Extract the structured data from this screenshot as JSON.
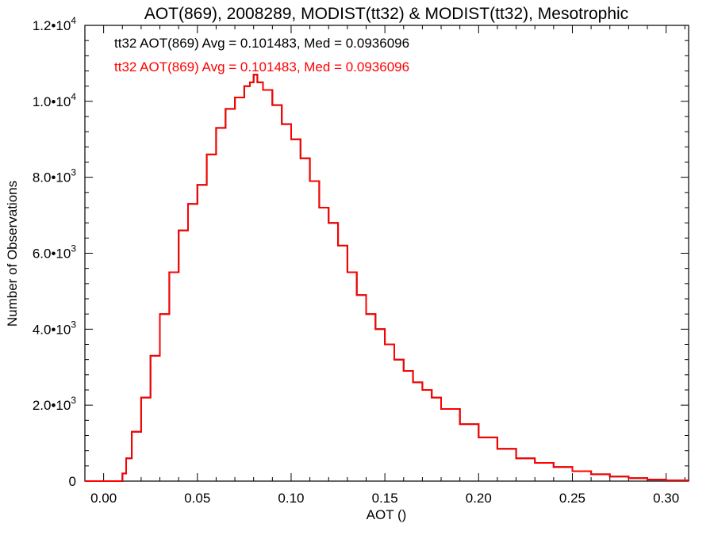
{
  "chart_data": {
    "type": "line",
    "title": "AOT(869), 2008289, MODIST(tt32) & MODIST(tt32), Mesotrophic",
    "xlabel": "AOT ()",
    "ylabel": "Number of Observations",
    "xlim": [
      -0.01,
      0.312
    ],
    "ylim": [
      0,
      12000
    ],
    "x_ticks": [
      {
        "value": 0.0,
        "label": "0.00"
      },
      {
        "value": 0.05,
        "label": "0.05"
      },
      {
        "value": 0.1,
        "label": "0.10"
      },
      {
        "value": 0.15,
        "label": "0.15"
      },
      {
        "value": 0.2,
        "label": "0.20"
      },
      {
        "value": 0.25,
        "label": "0.25"
      },
      {
        "value": 0.3,
        "label": "0.30"
      }
    ],
    "y_ticks": [
      {
        "value": 0,
        "base": "0",
        "exp": ""
      },
      {
        "value": 2000,
        "base": "2.0•10",
        "exp": "3"
      },
      {
        "value": 4000,
        "base": "4.0•10",
        "exp": "3"
      },
      {
        "value": 6000,
        "base": "6.0•10",
        "exp": "3"
      },
      {
        "value": 8000,
        "base": "8.0•10",
        "exp": "3"
      },
      {
        "value": 10000,
        "base": "1.0•10",
        "exp": "4"
      },
      {
        "value": 12000,
        "base": "1.2•10",
        "exp": "4"
      }
    ],
    "annotations": [
      {
        "text": "tt32 AOT(869) Avg = 0.101483, Med = 0.0936096",
        "color": "#000000"
      },
      {
        "text": "tt32 AOT(869) Avg = 0.101483, Med = 0.0936096",
        "color": "#ff0000"
      }
    ],
    "series": [
      {
        "color": "#000000",
        "x": [
          -0.01,
          0.005,
          0.01,
          0.012,
          0.015,
          0.02,
          0.025,
          0.03,
          0.035,
          0.04,
          0.045,
          0.05,
          0.055,
          0.06,
          0.065,
          0.07,
          0.075,
          0.078,
          0.08,
          0.082,
          0.085,
          0.09,
          0.095,
          0.1,
          0.105,
          0.11,
          0.115,
          0.12,
          0.125,
          0.13,
          0.135,
          0.14,
          0.145,
          0.15,
          0.155,
          0.16,
          0.165,
          0.17,
          0.175,
          0.18,
          0.19,
          0.2,
          0.21,
          0.22,
          0.23,
          0.24,
          0.25,
          0.26,
          0.27,
          0.28,
          0.29,
          0.3,
          0.312
        ],
        "y": [
          0,
          0,
          200,
          600,
          1300,
          2200,
          3300,
          4400,
          5500,
          6600,
          7300,
          7800,
          8600,
          9300,
          9800,
          10100,
          10400,
          10500,
          10700,
          10500,
          10300,
          9900,
          9400,
          9000,
          8500,
          7900,
          7200,
          6800,
          6200,
          5500,
          4900,
          4400,
          4000,
          3600,
          3200,
          2900,
          2600,
          2400,
          2200,
          1900,
          1500,
          1150,
          850,
          600,
          480,
          370,
          260,
          180,
          120,
          80,
          40,
          20,
          5
        ]
      },
      {
        "color": "#ff0000",
        "x": [
          -0.01,
          0.005,
          0.01,
          0.012,
          0.015,
          0.02,
          0.025,
          0.03,
          0.035,
          0.04,
          0.045,
          0.05,
          0.055,
          0.06,
          0.065,
          0.07,
          0.075,
          0.078,
          0.08,
          0.082,
          0.085,
          0.09,
          0.095,
          0.1,
          0.105,
          0.11,
          0.115,
          0.12,
          0.125,
          0.13,
          0.135,
          0.14,
          0.145,
          0.15,
          0.155,
          0.16,
          0.165,
          0.17,
          0.175,
          0.18,
          0.19,
          0.2,
          0.21,
          0.22,
          0.23,
          0.24,
          0.25,
          0.26,
          0.27,
          0.28,
          0.29,
          0.3,
          0.312
        ],
        "y": [
          0,
          0,
          200,
          600,
          1300,
          2200,
          3300,
          4400,
          5500,
          6600,
          7300,
          7800,
          8600,
          9300,
          9800,
          10100,
          10400,
          10500,
          10700,
          10500,
          10300,
          9900,
          9400,
          9000,
          8500,
          7900,
          7200,
          6800,
          6200,
          5500,
          4900,
          4400,
          4000,
          3600,
          3200,
          2900,
          2600,
          2400,
          2200,
          1900,
          1500,
          1150,
          850,
          600,
          480,
          370,
          260,
          180,
          120,
          80,
          40,
          20,
          5
        ]
      }
    ]
  }
}
